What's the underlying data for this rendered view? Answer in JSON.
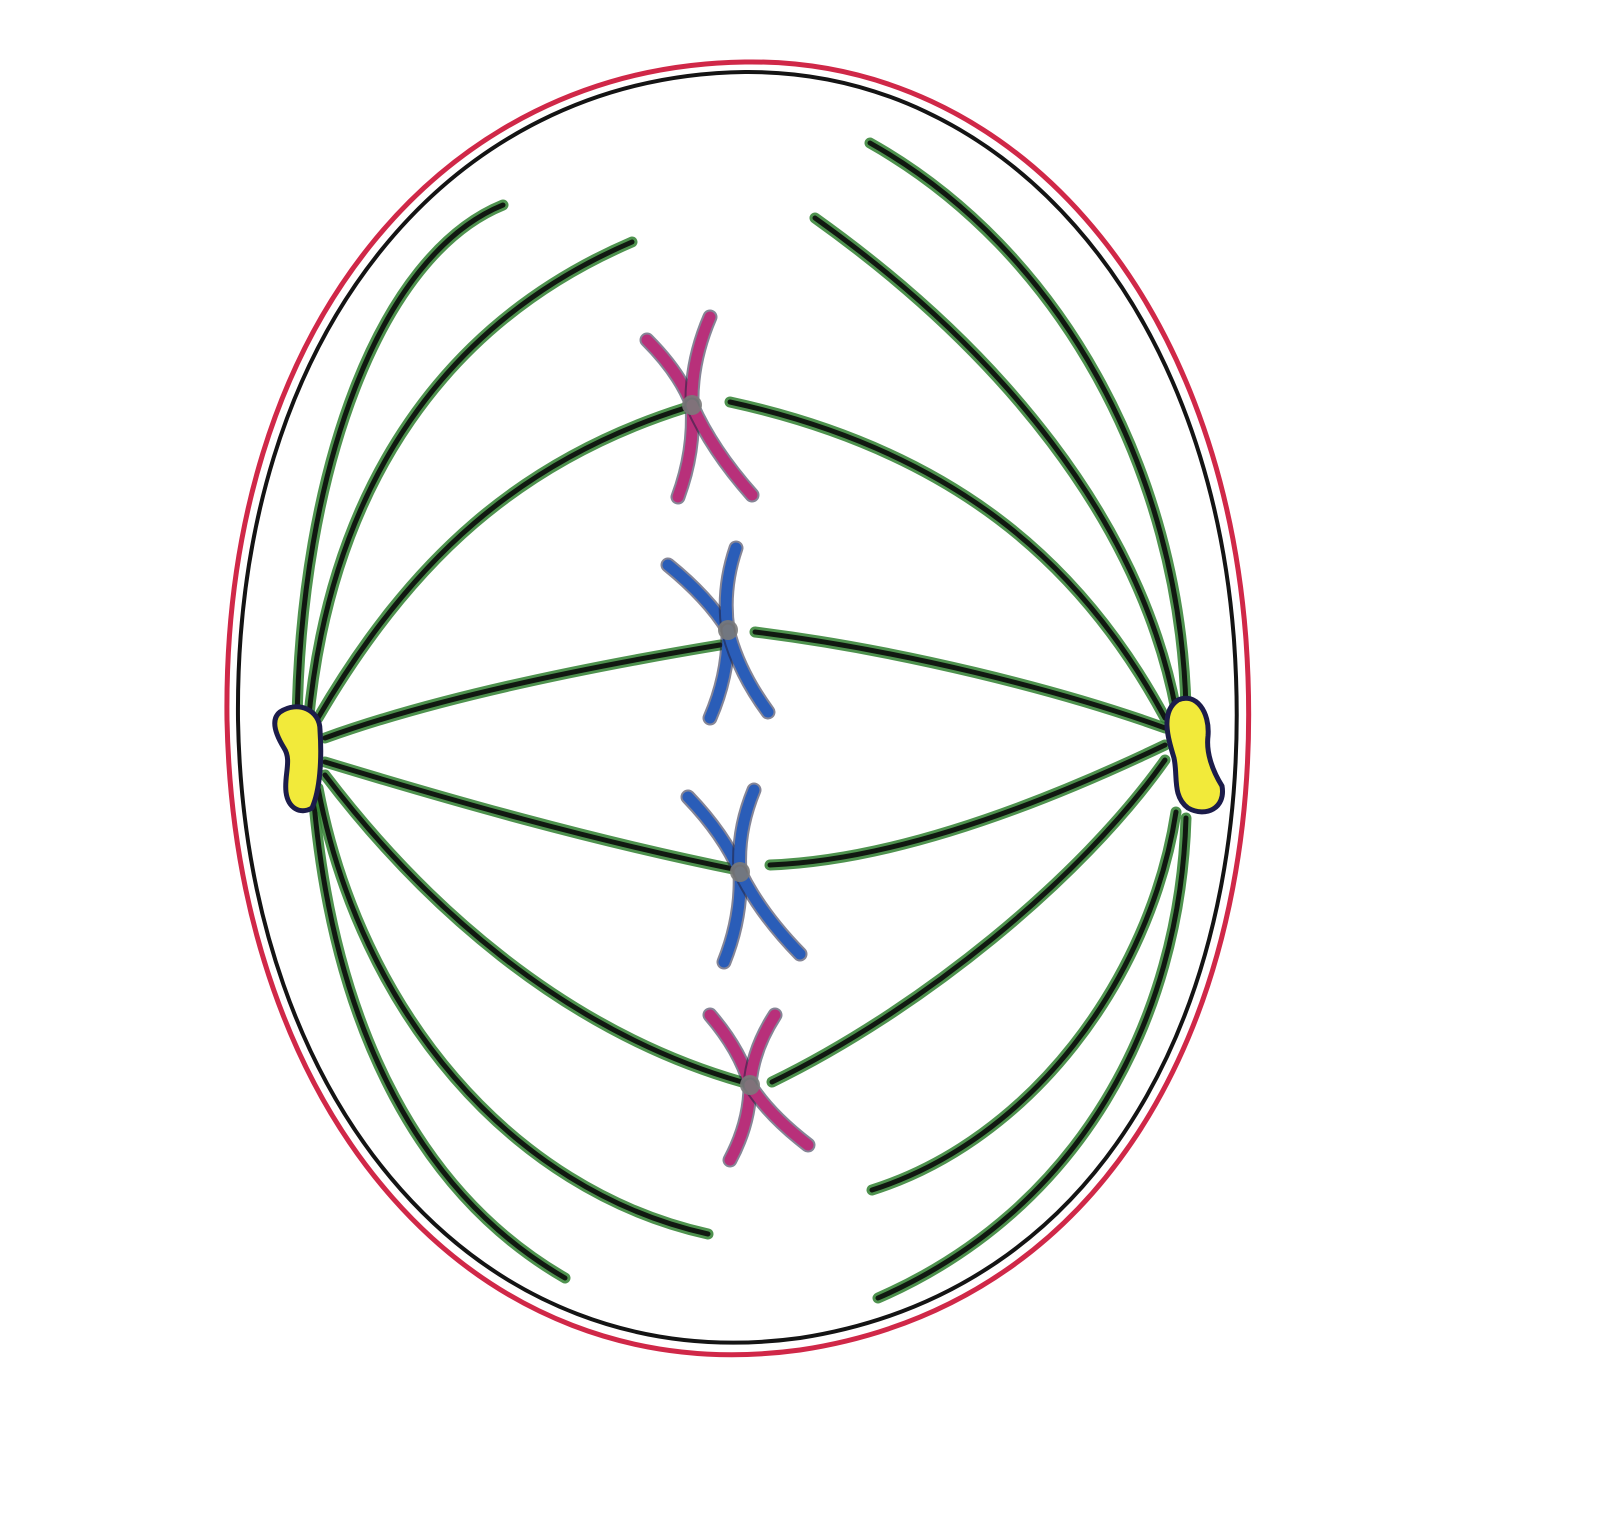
{
  "diagram": {
    "colors": {
      "background": "#ffffff",
      "membrane_outer": "#d02848",
      "membrane_inner": "#141414",
      "fiber_green": "#2f7f2f",
      "fiber_dark": "#101810",
      "centriole_fill": "#f2ea3a",
      "centriole_edge": "#1c1c4a",
      "chromosome_pink": "#b8307a",
      "chromosome_blue": "#2a5db8",
      "chromosome_edge": "#202040",
      "kinetochore": "#7a7a7a"
    },
    "icons": {
      "cell": "cell-membrane",
      "centrioles": "centriole-pair",
      "chromosomes": "x-shaped-chromosome",
      "spindle": "spindle-fibers"
    }
  }
}
